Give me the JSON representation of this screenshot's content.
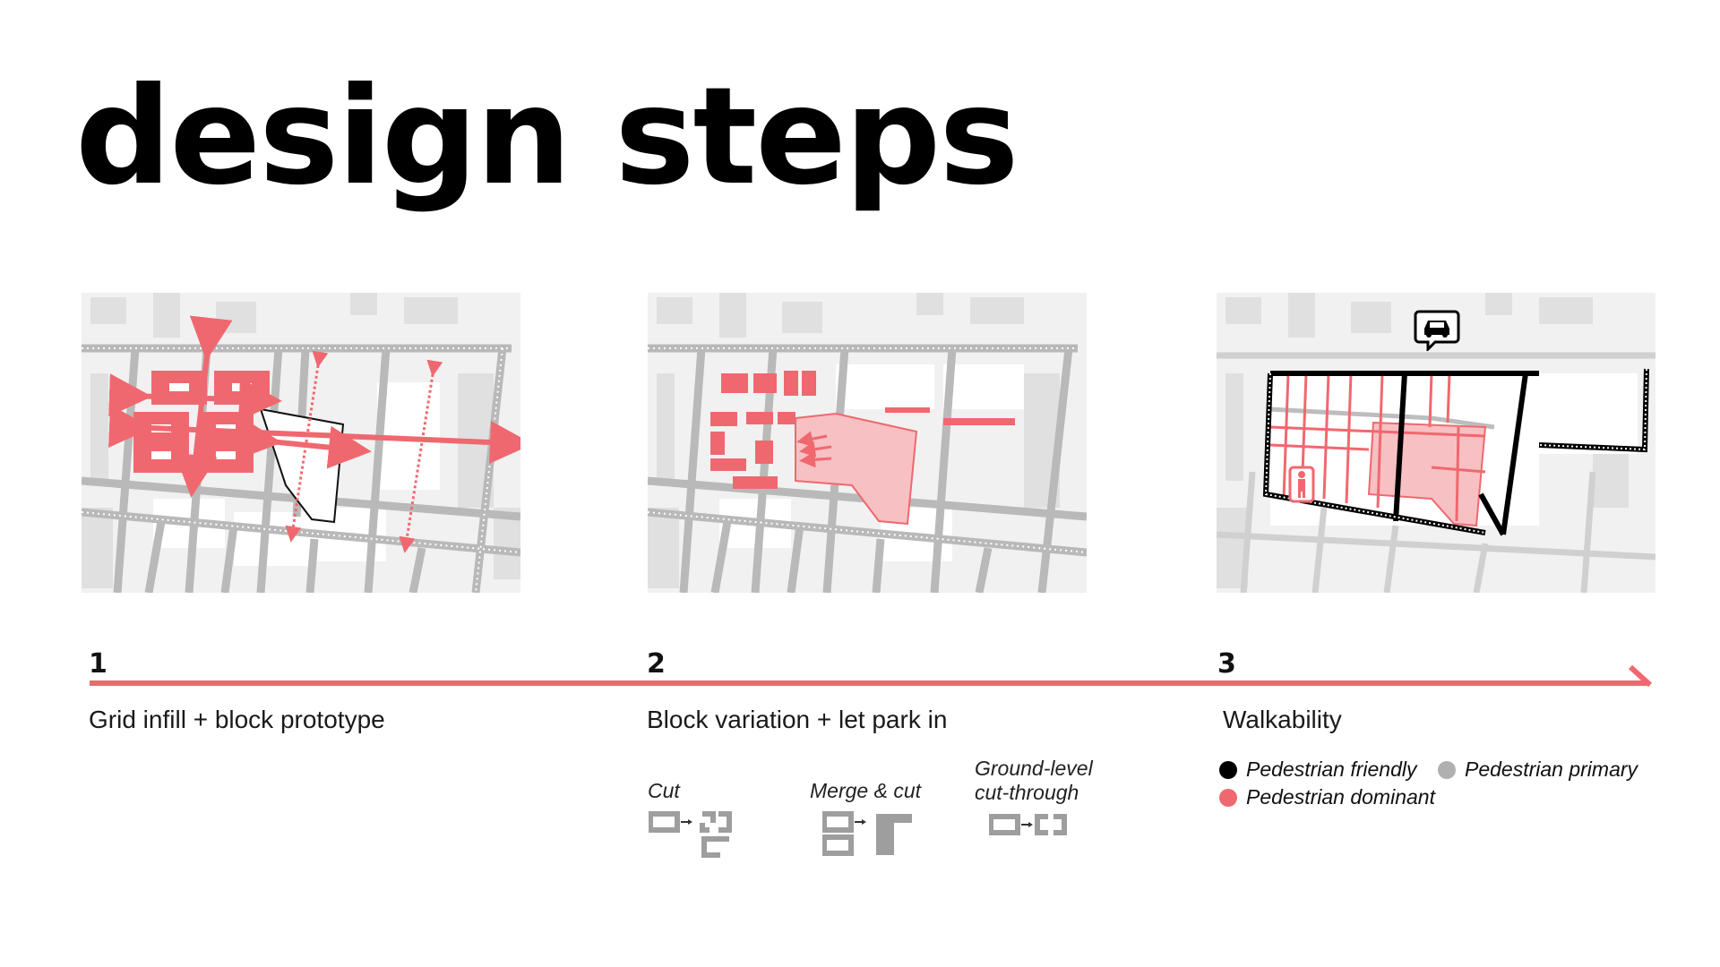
{
  "title": "design steps",
  "colors": {
    "accent": "#f0686f",
    "accent_light": "#f7b4b8",
    "road_gray": "#b8b8b8",
    "building_gray": "#e3e3e3",
    "black": "#000000",
    "secondary_gray": "#b0b0b0"
  },
  "steps": [
    {
      "number": "1",
      "label": "Grid infill + block prototype"
    },
    {
      "number": "2",
      "label": "Block variation + let park in"
    },
    {
      "number": "3",
      "label": "Walkability"
    }
  ],
  "operations": [
    {
      "label": "Cut"
    },
    {
      "label": "Merge & cut"
    },
    {
      "label_line1": "Ground-level",
      "label_line2": "cut-through"
    }
  ],
  "legend": [
    {
      "label": "Pedestrian friendly",
      "color": "#000000"
    },
    {
      "label": "Pedestrian primary",
      "color": "#b0b0b0"
    },
    {
      "label": "Pedestrian dominant",
      "color": "#f0686f"
    }
  ],
  "icons": [
    "car-icon",
    "pedestrian-icon"
  ]
}
